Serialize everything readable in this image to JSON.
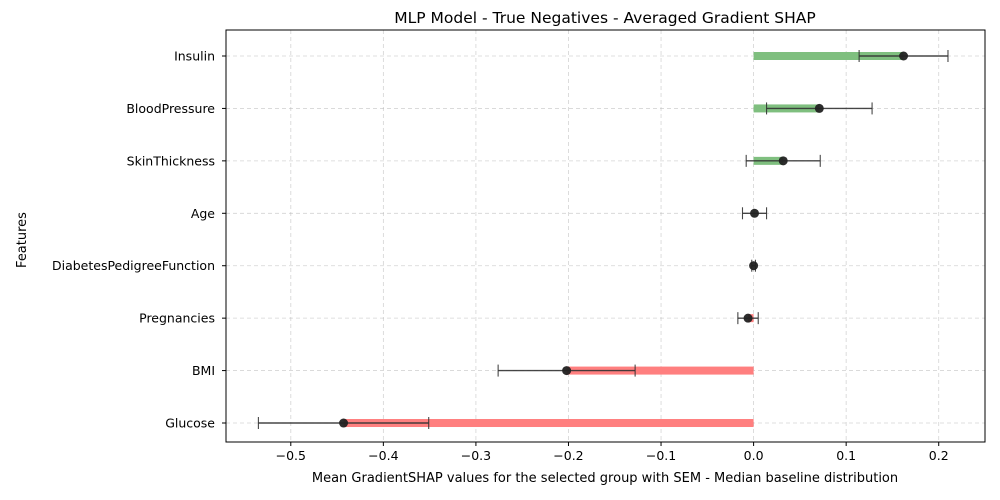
{
  "chart_data": {
    "type": "bar",
    "orientation": "horizontal",
    "title": "MLP Model - True Negatives - Averaged Gradient SHAP",
    "xlabel": "Mean GradientSHAP values for the selected group with SEM - Median baseline distribution",
    "ylabel": "Features",
    "xlim": [
      -0.57,
      0.25
    ],
    "xticks": [
      -0.5,
      -0.4,
      -0.3,
      -0.2,
      -0.1,
      0.0,
      0.1,
      0.2
    ],
    "xtick_labels": [
      "−0.5",
      "−0.4",
      "−0.3",
      "−0.2",
      "−0.1",
      "0.0",
      "0.1",
      "0.2"
    ],
    "grid": true,
    "colors": {
      "positive": "#7fbf7f",
      "negative": "#ff7f7f",
      "marker": "#222222",
      "errorbar": "#333333"
    },
    "categories": [
      "Insulin",
      "BloodPressure",
      "SkinThickness",
      "Age",
      "DiabetesPedigreeFunction",
      "Pregnancies",
      "BMI",
      "Glucose"
    ],
    "values": [
      0.162,
      0.071,
      0.032,
      0.001,
      0.0,
      -0.006,
      -0.202,
      -0.443
    ],
    "errors": [
      0.048,
      0.057,
      0.04,
      0.013,
      0.002,
      0.011,
      0.074,
      0.092
    ]
  }
}
